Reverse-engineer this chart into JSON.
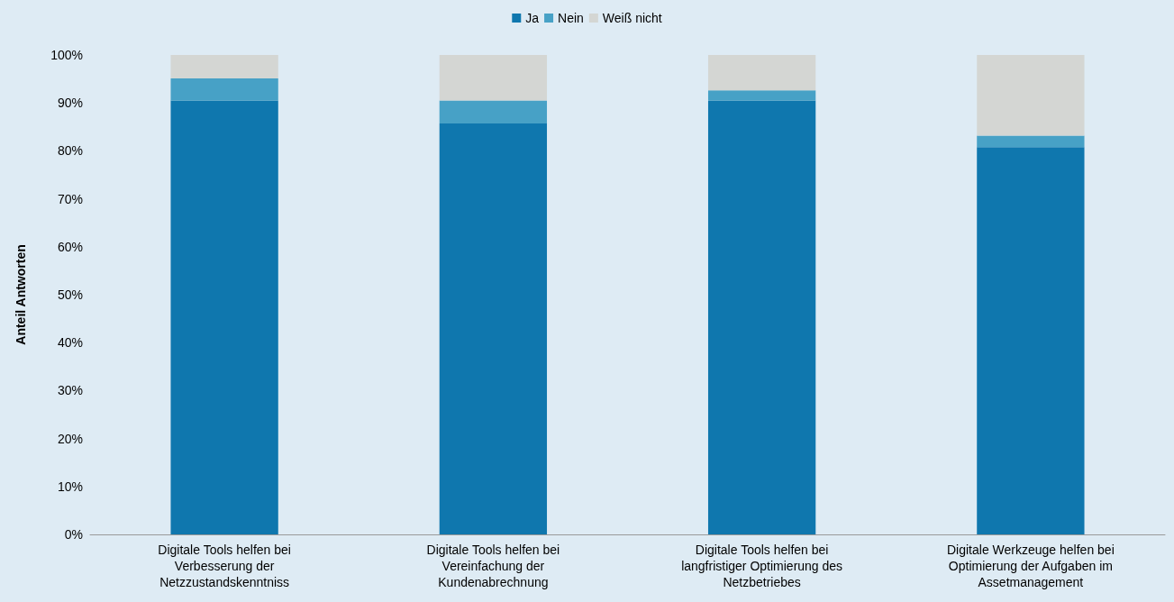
{
  "chart_data": {
    "type": "bar",
    "stacked": true,
    "ylabel": "Anteil Antworten",
    "categories": [
      "Digitale Tools helfen bei Verbesserung der Netzzustandskenntniss",
      "Digitale Tools helfen bei Vereinfachung der Kundenabrechnung",
      "Digitale Tools helfen bei langfristiger Optimierung des Netzbetriebes",
      "Digitale Werkzeuge helfen bei Optimierung der Aufgaben im Assetmanagement"
    ],
    "series": [
      {
        "name": "Ja",
        "color": "#0f77ae",
        "values": [
          90.5,
          85.7,
          90.5,
          80.8
        ]
      },
      {
        "name": "Nein",
        "color": "#47a1c6",
        "values": [
          4.6,
          4.8,
          2.1,
          2.4
        ]
      },
      {
        "name": "Weiß nicht",
        "color": "#d4d6d3",
        "values": [
          4.9,
          9.5,
          7.4,
          16.8
        ]
      }
    ],
    "ylim": [
      0,
      100
    ],
    "yticks": [
      {
        "value": 0,
        "label": "0%"
      },
      {
        "value": 10,
        "label": "10%"
      },
      {
        "value": 20,
        "label": "20%"
      },
      {
        "value": 30,
        "label": "30%"
      },
      {
        "value": 40,
        "label": "40%"
      },
      {
        "value": 50,
        "label": "50%"
      },
      {
        "value": 60,
        "label": "60%"
      },
      {
        "value": 70,
        "label": "70%"
      },
      {
        "value": 80,
        "label": "80%"
      },
      {
        "value": 90,
        "label": "90%"
      },
      {
        "value": 100,
        "label": "100%"
      }
    ],
    "grid": false,
    "legend": "top"
  }
}
